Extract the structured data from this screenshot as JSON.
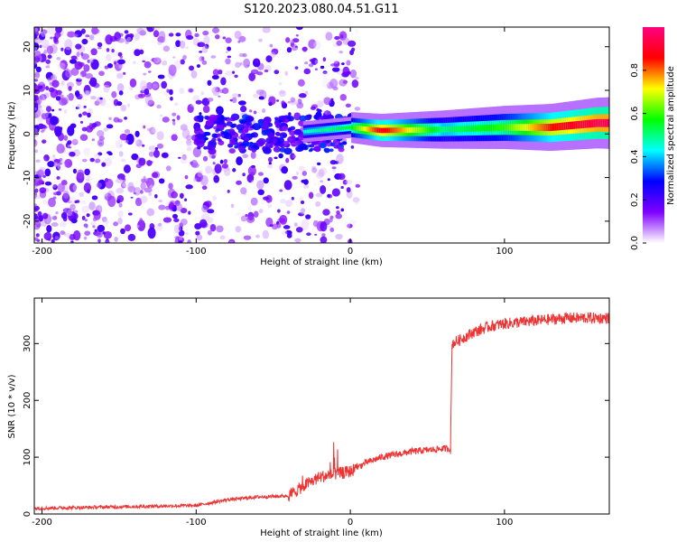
{
  "chart_data": [
    {
      "type": "heatmap",
      "title": "S120.2023.080.04.51.G11",
      "xlabel": "Height of straight line (km)",
      "ylabel": "Frequency (Hz)",
      "xlim": [
        -205,
        168
      ],
      "ylim": [
        -25,
        24.5
      ],
      "xticks": [
        -200,
        -100,
        0,
        100
      ],
      "yticks": [
        -20,
        -10,
        0,
        10,
        20
      ],
      "colorbar": {
        "label": "Normalized spectral amplitude",
        "range": [
          0,
          1
        ],
        "ticks": [
          "0.0",
          "0.2",
          "0.4",
          "0.6",
          "0.8"
        ],
        "tick_values": [
          0,
          0.2,
          0.4,
          0.6,
          0.8
        ],
        "colors": [
          "#ffffff",
          "#7f00ff",
          "#0000ff",
          "#00ffff",
          "#00ff00",
          "#ffff00",
          "#ff0000",
          "#ff0080"
        ]
      },
      "ridge": [
        {
          "x": -95,
          "y": 0.0,
          "amp": 0.25
        },
        {
          "x": -50,
          "y": 0.5,
          "amp": 0.3
        },
        {
          "x": -30,
          "y": 0.5,
          "amp": 0.45
        },
        {
          "x": 0,
          "y": 1.5,
          "amp": 0.55
        },
        {
          "x": 20,
          "y": 0.8,
          "amp": 0.9
        },
        {
          "x": 60,
          "y": 1.0,
          "amp": 0.5
        },
        {
          "x": 100,
          "y": 1.5,
          "amp": 0.6
        },
        {
          "x": 130,
          "y": 1.5,
          "amp": 0.85
        },
        {
          "x": 160,
          "y": 2.5,
          "amp": 0.95
        }
      ]
    },
    {
      "type": "line",
      "xlabel": "Height of straight line (km)",
      "ylabel": "SNR (10 * v/v)",
      "xlim": [
        -205,
        168
      ],
      "ylim": [
        0,
        380
      ],
      "xticks": [
        -200,
        -100,
        0,
        100
      ],
      "yticks": [
        0,
        100,
        200,
        300
      ],
      "color": "#ee3333",
      "x": [
        -205,
        -100,
        -80,
        -60,
        -40,
        -30,
        -20,
        -10,
        0,
        10,
        20,
        40,
        60,
        65,
        66,
        70,
        80,
        90,
        100,
        120,
        140,
        168
      ],
      "y": [
        10,
        15,
        25,
        30,
        32,
        50,
        65,
        70,
        75,
        90,
        100,
        110,
        115,
        115,
        300,
        305,
        320,
        330,
        335,
        340,
        345,
        345
      ]
    }
  ]
}
